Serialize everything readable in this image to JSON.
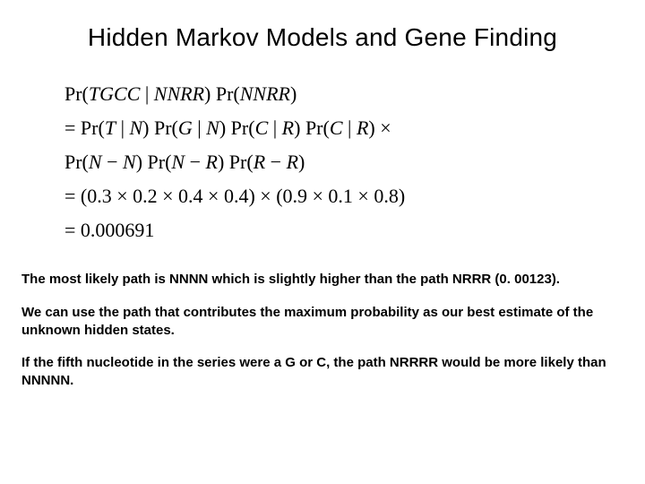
{
  "title": "Hidden Markov Models and Gene Finding",
  "math": {
    "line1_pre": "Pr(",
    "line1_tgcc": "TGCC",
    "line1_bar": " | ",
    "line1_nnrr1": "NNRR",
    "line1_mid": ") Pr(",
    "line1_nnrr2": "NNRR",
    "line1_end": ")",
    "eq": "= ",
    "line2_a": "Pr(",
    "line2_T": "T",
    "line2_b": " | ",
    "line2_N1": "N",
    "line2_c": ") Pr(",
    "line2_G": "G",
    "line2_d": " | ",
    "line2_N2": "N",
    "line2_e": ") Pr(",
    "line2_C1": "C",
    "line2_f": " | ",
    "line2_R1": "R",
    "line2_g": ") Pr(",
    "line2_C2": "C",
    "line2_h": " | ",
    "line2_R2": "R",
    "line2_i": ") ×",
    "line3_a": "Pr(",
    "line3_N1": "N",
    "line3_dash1": " − ",
    "line3_N2": "N",
    "line3_b": ") Pr(",
    "line3_N3": "N",
    "line3_dash2": " − ",
    "line3_R1": "R",
    "line3_c": ") Pr(",
    "line3_R2": "R",
    "line3_dash3": " − ",
    "line3_R3": "R",
    "line3_d": ")",
    "line4": "= (0.3 × 0.2 × 0.4 × 0.4) × (0.9 × 0.1 × 0.8)",
    "line5": "= 0.000691"
  },
  "para1": {
    "t1": "The most likely path is ",
    "b1": "NNNN",
    "t2": " which is ",
    "b2": "slightly higher than",
    "t3": " the path ",
    "b3": "NRRR",
    "t4": " (0. 00123)."
  },
  "para2": {
    "t1": "We can use the path that contributes the ",
    "b1": "maximum probability as our best estimate of the unknown hidden states."
  },
  "para3": {
    "t1": "If the ",
    "b1": "fifth nucleotide",
    "t2": " in the series were a G or C, the path ",
    "b2": "NRRRR would be more likely than NNNNN."
  }
}
